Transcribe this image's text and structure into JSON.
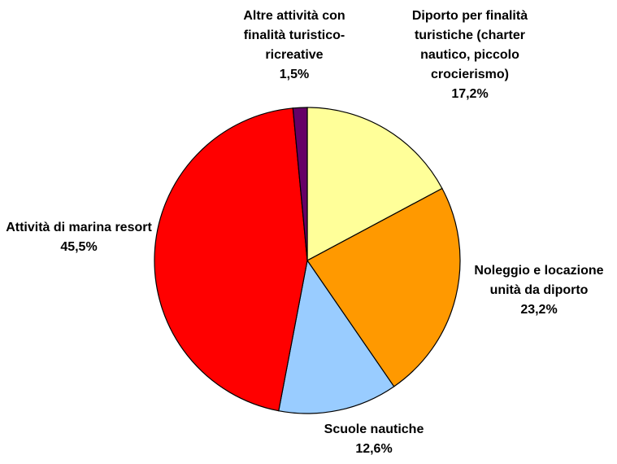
{
  "chart_data": {
    "type": "pie",
    "categories": [
      "Diporto per finalità turistiche (charter nautico, piccolo crocierismo)",
      "Noleggio e locazione unità da diporto",
      "Scuole nautiche",
      "Attività di marina resort",
      "Altre attività con finalità turistico-ricreative"
    ],
    "values": [
      17.2,
      23.2,
      12.6,
      45.5,
      1.5
    ],
    "value_labels": [
      "17,2%",
      "23,2%",
      "12,6%",
      "45,5%",
      "1,5%"
    ],
    "colors": [
      "#ffff99",
      "#ff9900",
      "#99ccff",
      "#ff0000",
      "#660066"
    ]
  }
}
